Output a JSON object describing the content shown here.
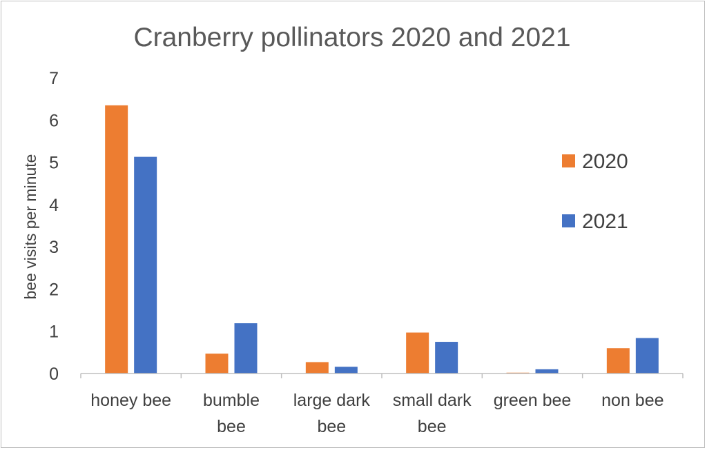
{
  "chart_data": {
    "type": "bar",
    "title": "Cranberry pollinators 2020 and 2021",
    "ylabel": "bee visits  per minute",
    "xlabel": "",
    "ylim": [
      0,
      7
    ],
    "yticks": [
      "0",
      "1",
      "2",
      "3",
      "4",
      "5",
      "6",
      "7"
    ],
    "categories": [
      [
        "honey bee"
      ],
      [
        "bumble",
        "bee"
      ],
      [
        "large dark",
        "bee"
      ],
      [
        "small dark",
        "bee"
      ],
      [
        "green bee"
      ],
      [
        "non bee"
      ]
    ],
    "series": [
      {
        "name": "2020",
        "color": "#ed7d31",
        "values": [
          6.35,
          0.47,
          0.27,
          0.97,
          0.02,
          0.6
        ]
      },
      {
        "name": "2021",
        "color": "#4472c4",
        "values": [
          5.13,
          1.19,
          0.16,
          0.75,
          0.1,
          0.84
        ]
      }
    ],
    "legend": "right",
    "grid": false
  }
}
